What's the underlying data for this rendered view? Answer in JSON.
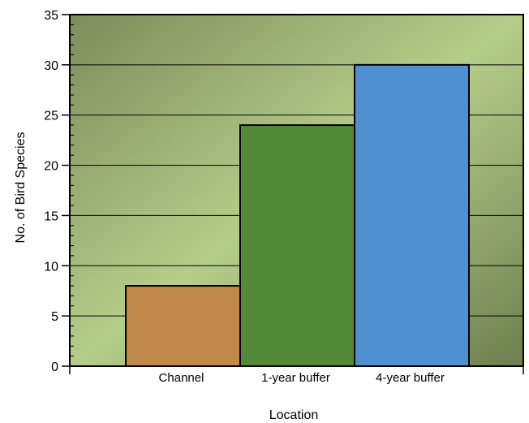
{
  "chart_data": {
    "type": "bar",
    "xlabel": "Location",
    "ylabel": "No. of Bird Species",
    "categories": [
      "Channel",
      "1-year buffer",
      "4-year buffer"
    ],
    "values": [
      8,
      24,
      30
    ],
    "ylim": [
      0,
      35
    ],
    "yticks": [
      0,
      5,
      10,
      15,
      20,
      25,
      30,
      35
    ],
    "bar_colors": [
      "#c0894a",
      "#528a38",
      "#4f91d0"
    ],
    "grid": true,
    "background_gradient": [
      "#7e8c5a",
      "#b5cd8a",
      "#6e7f4f"
    ]
  }
}
